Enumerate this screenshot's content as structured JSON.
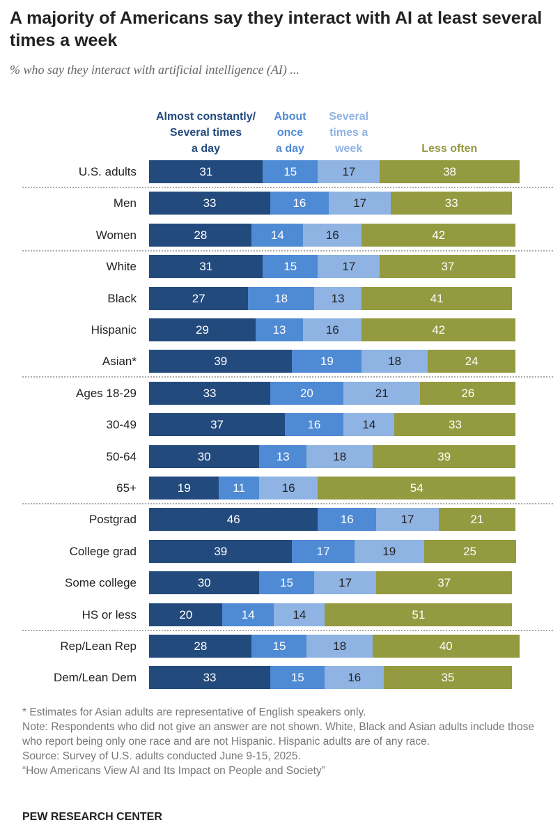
{
  "title": "A majority of Americans say they interact with AI at least several times a week",
  "subtitle": "% who say they interact with artificial intelligence (AI) ...",
  "chart_data": {
    "type": "bar",
    "orientation": "horizontal",
    "stacked": true,
    "categories": [
      "U.S. adults",
      "Men",
      "Women",
      "White",
      "Black",
      "Hispanic",
      "Asian*",
      "Ages 18-29",
      "30-49",
      "50-64",
      "65+",
      "Postgrad",
      "College grad",
      "Some college",
      "HS or less",
      "Rep/Lean Rep",
      "Dem/Lean Dem"
    ],
    "series": [
      {
        "name": "Almost constantly/\nSeveral times\na day",
        "color": "#234a7d",
        "values": [
          31,
          33,
          28,
          31,
          27,
          29,
          39,
          33,
          37,
          30,
          19,
          46,
          39,
          30,
          20,
          28,
          33
        ]
      },
      {
        "name": "About\nonce\na day",
        "color": "#4f8ad4",
        "values": [
          15,
          16,
          14,
          15,
          18,
          13,
          19,
          20,
          16,
          13,
          11,
          16,
          17,
          15,
          14,
          15,
          15
        ]
      },
      {
        "name": "Several\ntimes a\nweek",
        "color": "#8fb3e2",
        "values": [
          17,
          17,
          16,
          17,
          13,
          16,
          18,
          21,
          14,
          18,
          16,
          17,
          19,
          17,
          14,
          18,
          16
        ]
      },
      {
        "name": "Less often",
        "color": "#949a3f",
        "values": [
          38,
          33,
          42,
          37,
          41,
          42,
          24,
          26,
          33,
          39,
          54,
          21,
          25,
          37,
          51,
          40,
          35
        ]
      }
    ],
    "legend_placement": "top",
    "group_separators_after": [
      0,
      2,
      6,
      10,
      14
    ],
    "grid": false
  },
  "notes": [
    "* Estimates for Asian adults are representative of English speakers only.",
    "Note: Respondents who did not give an answer are not shown. White, Black and Asian adults include those who report being only one race and are not Hispanic. Hispanic adults are of any race.",
    "Source: Survey of U.S. adults conducted June 9-15, 2025.",
    "“How Americans View AI and Its Impact on People and Society”"
  ],
  "brand": "PEW RESEARCH CENTER"
}
